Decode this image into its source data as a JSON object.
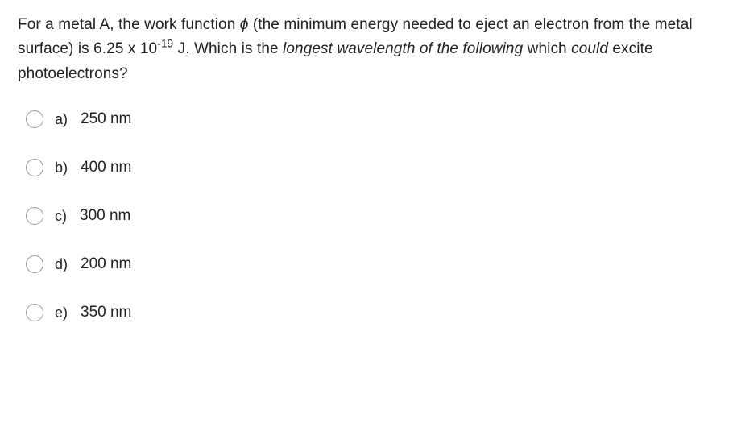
{
  "question": {
    "part1": "For a metal A, the work function ",
    "phi": "ϕ",
    "part2": " (the minimum energy needed to eject an electron from the metal surface) is 6.25 x 10",
    "exp": "-19",
    "part3": " J. Which is the ",
    "italic1": "longest wavelength of the following",
    "part4": " which ",
    "italic2": "could",
    "part5": " excite photoelectrons?"
  },
  "options": [
    {
      "letter": "a)",
      "text": "250 nm"
    },
    {
      "letter": "b)",
      "text": "400 nm"
    },
    {
      "letter": "c)",
      "text": "300 nm"
    },
    {
      "letter": "d)",
      "text": "200 nm"
    },
    {
      "letter": "e)",
      "text": "350 nm"
    }
  ],
  "colors": {
    "background": "#ffffff",
    "text": "#222222",
    "radio_border": "#999999"
  },
  "typography": {
    "question_fontsize": 19,
    "option_fontsize": 19,
    "line_height": 1.6
  }
}
